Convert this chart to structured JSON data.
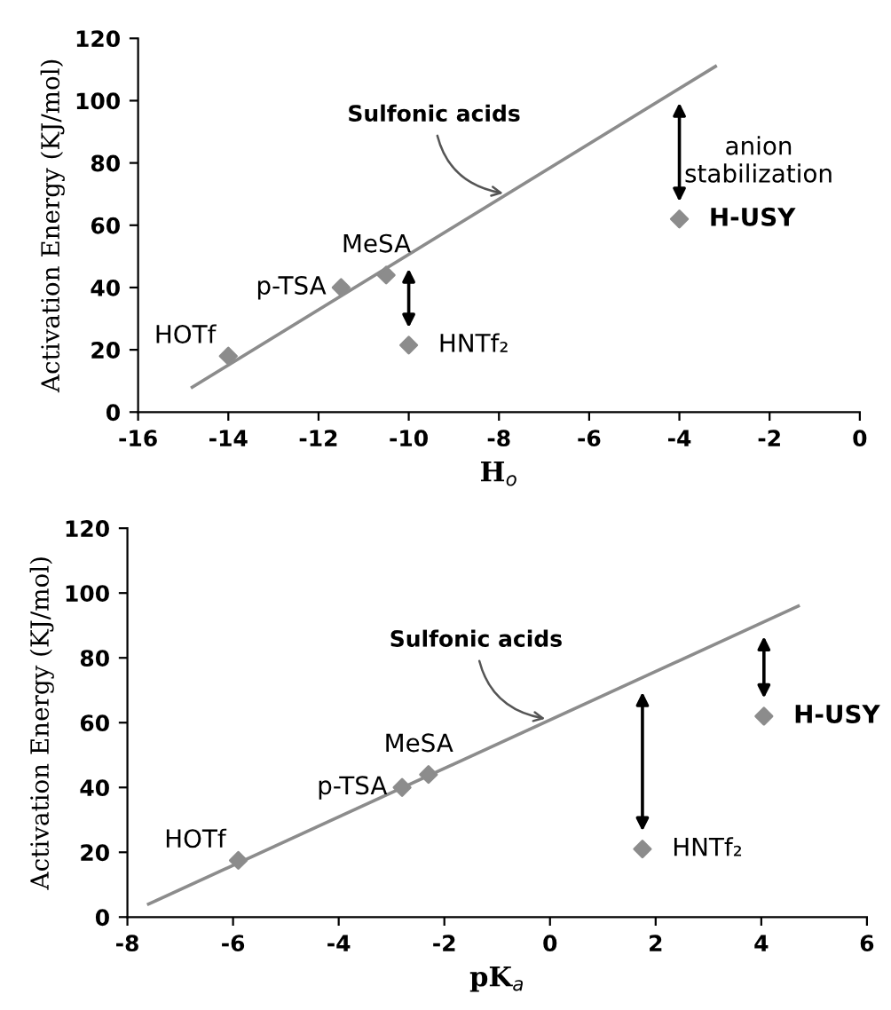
{
  "chart_data": [
    {
      "type": "scatter",
      "xlabel": "H$_{o}$",
      "ylabel": "Activation Energy (KJ/mol)",
      "xlim": [
        -16,
        0
      ],
      "ylim": [
        0,
        120
      ],
      "xticks": [
        -16,
        -14,
        -12,
        -10,
        -8,
        -6,
        -4,
        -2,
        0
      ],
      "yticks": [
        0,
        20,
        40,
        60,
        80,
        100,
        120
      ],
      "grid": false,
      "legend": false,
      "series": [
        {
          "marker": "diamond",
          "color": "#8c8c8c",
          "x": [
            -14,
            -11.5,
            -10.5,
            -10,
            -4
          ],
          "values": [
            18,
            40,
            44,
            21.5,
            62
          ]
        },
        {
          "type": "line",
          "color": "#8c8c8c",
          "line_style": "solid",
          "x": [
            -14.8,
            -3.2
          ],
          "values": [
            8,
            111
          ]
        }
      ],
      "annotations": [
        {
          "text": "HOTf",
          "x": -14,
          "y": 18
        },
        {
          "text": "p-TSA",
          "x": -11.5,
          "y": 40
        },
        {
          "text": "MeSA",
          "x": -10.5,
          "y": 44
        },
        {
          "text": "HNTf₂",
          "x": -10,
          "y": 21.5
        },
        {
          "text": "H-USY",
          "x": -4,
          "y": 62
        },
        {
          "text": "Sulfonic acids",
          "x": -7.8,
          "y": 70
        },
        "anion stabilization"
      ]
    },
    {
      "type": "scatter",
      "xlabel": "pK$_{a}$",
      "ylabel": "Activation Energy (KJ/mol)",
      "xlim": [
        -8,
        6
      ],
      "ylim": [
        0,
        120
      ],
      "xticks": [
        -8,
        -6,
        -4,
        -2,
        0,
        2,
        4,
        6
      ],
      "yticks": [
        0,
        20,
        40,
        60,
        80,
        100,
        120
      ],
      "grid": false,
      "legend": false,
      "series": [
        {
          "marker": "diamond",
          "color": "#8c8c8c",
          "x": [
            -5.9,
            -2.8,
            -2.3,
            1.75,
            4.05
          ],
          "values": [
            17.5,
            40,
            44,
            21,
            62
          ]
        },
        {
          "type": "line",
          "color": "#8c8c8c",
          "line_style": "solid",
          "x": [
            -7.6,
            4.7
          ],
          "values": [
            4,
            96
          ]
        }
      ],
      "annotations": [
        {
          "text": "HOTf",
          "x": -5.9,
          "y": 17.5
        },
        {
          "text": "p-TSA",
          "x": -2.8,
          "y": 40
        },
        {
          "text": "MeSA",
          "x": -2.3,
          "y": 44
        },
        {
          "text": "HNTf₂",
          "x": 1.75,
          "y": 21
        },
        {
          "text": "H-USY",
          "x": 4.05,
          "y": 62
        },
        {
          "text": "Sulfonic acids",
          "x": 0,
          "y": 61
        }
      ]
    }
  ]
}
